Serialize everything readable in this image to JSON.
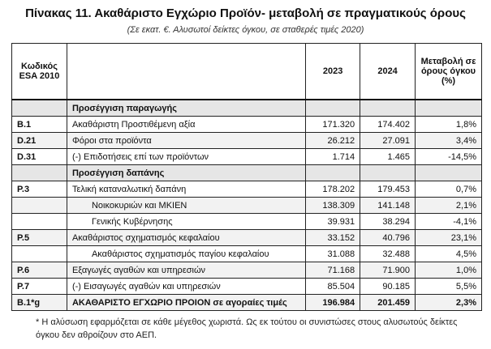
{
  "title": "Πίνακας 11. Ακαθάριστο Εγχώριο Προϊόν- μεταβολή σε πραγματικούς όρους",
  "subtitle": "(Σε εκατ. €. Αλυσωτοί δείκτες όγκου, σε σταθερές τιμές 2020)",
  "table": {
    "headers": {
      "code": "Κωδικός ESA 2010",
      "desc": "",
      "y2023": "2023",
      "y2024": "2024",
      "change": "Μεταβολή σε όρους όγκου (%)"
    },
    "rows": [
      {
        "type": "sec",
        "code": "",
        "desc": "Προσέγγιση παραγωγής",
        "v2023": "",
        "v2024": "",
        "chg": ""
      },
      {
        "type": "",
        "code": "B.1",
        "desc": "Ακαθάριστη Προστιθέμενη αξία",
        "v2023": "171.320",
        "v2024": "174.402",
        "chg": "1,8%"
      },
      {
        "type": "alt",
        "code": "D.21",
        "desc": "Φόροι στα προϊόντα",
        "v2023": "26.212",
        "v2024": "27.091",
        "chg": "3,4%"
      },
      {
        "type": "",
        "code": "D.31",
        "desc": "(-) Επιδοτήσεις επί των προϊόντων",
        "v2023": "1.714",
        "v2024": "1.465",
        "chg": "-14,5%"
      },
      {
        "type": "sec",
        "code": "",
        "desc": "Προσέγγιση δαπάνης",
        "v2023": "",
        "v2024": "",
        "chg": ""
      },
      {
        "type": "",
        "code": "P.3",
        "desc": "Τελική καταναλωτική δαπάνη",
        "v2023": "178.202",
        "v2024": "179.453",
        "chg": "0,7%"
      },
      {
        "type": "alt ind",
        "code": "",
        "desc": "Νοικοκυριών και ΜΚΙΕΝ",
        "v2023": "138.309",
        "v2024": "141.148",
        "chg": "2,1%"
      },
      {
        "type": "ind",
        "code": "",
        "desc": "Γενικής Κυβέρνησης",
        "v2023": "39.931",
        "v2024": "38.294",
        "chg": "-4,1%"
      },
      {
        "type": "alt",
        "code": "P.5",
        "desc": "Ακαθάριστος σχηματισμός κεφαλαίου",
        "v2023": "33.152",
        "v2024": "40.796",
        "chg": "23,1%"
      },
      {
        "type": "ind",
        "code": "",
        "desc": "Ακαθάριστος σχηματισμός παγίου κεφαλαίου",
        "v2023": "31.088",
        "v2024": "32.488",
        "chg": "4,5%"
      },
      {
        "type": "alt",
        "code": "P.6",
        "desc": "Εξαγωγές αγαθών και υπηρεσιών",
        "v2023": "71.168",
        "v2024": "71.900",
        "chg": "1,0%"
      },
      {
        "type": "",
        "code": "P.7",
        "desc": "(-) Εισαγωγές αγαθών και υπηρεσιών",
        "v2023": "85.504",
        "v2024": "90.185",
        "chg": "5,5%"
      },
      {
        "type": "total",
        "code": "B.1*g",
        "desc": "ΑΚΑΘΑΡΙΣΤΟ ΕΓΧΩΡΙΟ ΠΡΟΙΟΝ σε αγοραίες τιμές",
        "v2023": "196.984",
        "v2024": "201.459",
        "chg": "2,3%"
      }
    ]
  },
  "note": "* Η αλύσωση εφαρμόζεται σε κάθε μέγεθος χωριστά. Ως εκ τούτου οι συνιστώσες στους αλυσωτούς δείκτες όγκου δεν αθροίζουν στο ΑΕΠ."
}
